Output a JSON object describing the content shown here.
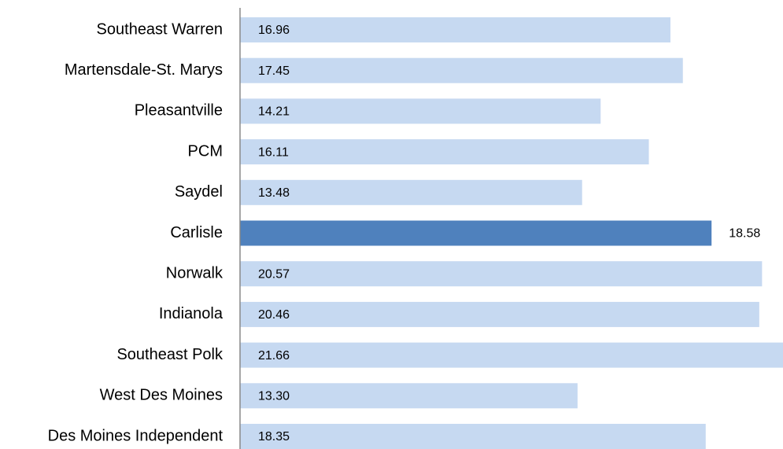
{
  "chart_data": {
    "type": "barh",
    "categories": [
      "Southeast Warren",
      "Martensdale-St. Marys",
      "Pleasantville",
      "PCM",
      "Saydel",
      "Carlisle",
      "Norwalk",
      "Indianola",
      "Southeast Polk",
      "West Des Moines",
      "Des Moines Independent"
    ],
    "values": [
      16.96,
      17.45,
      14.21,
      16.11,
      13.48,
      18.58,
      20.57,
      20.46,
      21.66,
      13.3,
      18.35
    ],
    "value_labels": [
      "16.96",
      "17.45",
      "14.21",
      "16.11",
      "13.48",
      "18.58",
      "20.57",
      "20.46",
      "21.66",
      "13.30",
      "18.35"
    ],
    "colors": [
      "#c6d9f1",
      "#c6d9f1",
      "#c6d9f1",
      "#c6d9f1",
      "#c6d9f1",
      "#4f81bd",
      "#c6d9f1",
      "#c6d9f1",
      "#c6d9f1",
      "#c6d9f1",
      "#c6d9f1"
    ],
    "label_positions": [
      "inside",
      "inside",
      "inside",
      "inside",
      "inside",
      "outside",
      "inside",
      "inside",
      "inside",
      "inside",
      "inside"
    ]
  }
}
